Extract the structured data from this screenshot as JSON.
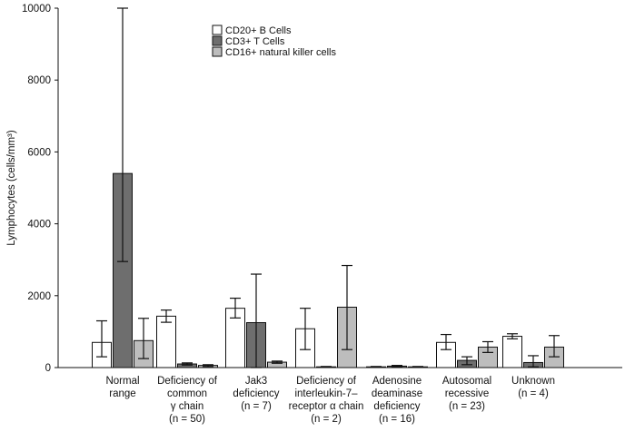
{
  "chart_data": {
    "type": "bar",
    "title": "",
    "xlabel": "",
    "ylabel": "Lymphocytes (cells/mm³)",
    "ylim": [
      0,
      10000
    ],
    "yticks": [
      "0",
      "2000",
      "4000",
      "6000",
      "8000",
      "10000"
    ],
    "ytick_values": [
      0,
      2000,
      4000,
      6000,
      8000,
      10000
    ],
    "grid": false,
    "legend_position": "top-center",
    "categories": [
      {
        "lines": [
          "Normal",
          "range"
        ]
      },
      {
        "lines": [
          "Deficiency of",
          "common",
          "γ chain",
          "(n = 50)"
        ]
      },
      {
        "lines": [
          "Jak3",
          "deficiency",
          "(n = 7)"
        ]
      },
      {
        "lines": [
          "Deficiency of",
          "interleukin-7–",
          "receptor α chain",
          "(n = 2)"
        ]
      },
      {
        "lines": [
          "Adenosine",
          "deaminase",
          "deficiency",
          "(n = 16)"
        ]
      },
      {
        "lines": [
          "Autosomal",
          "recessive",
          "(n = 23)"
        ]
      },
      {
        "lines": [
          "Unknown",
          "(n = 4)"
        ]
      }
    ],
    "series": [
      {
        "name": "CD20+ B Cells",
        "color": "#ffffff",
        "values": [
          700,
          1430,
          1650,
          1080,
          20,
          700,
          870
        ],
        "error_low": [
          300,
          1260,
          1380,
          500,
          10,
          500,
          800
        ],
        "error_high": [
          1300,
          1600,
          1930,
          1650,
          30,
          920,
          940
        ]
      },
      {
        "name": "CD3+ T Cells",
        "color": "#6e6e6e",
        "values": [
          5400,
          100,
          1250,
          20,
          40,
          200,
          140
        ],
        "error_low": [
          2950,
          70,
          0,
          10,
          20,
          80,
          20
        ],
        "error_high": [
          10000,
          130,
          2600,
          30,
          60,
          300,
          330
        ]
      },
      {
        "name": "CD16+ natural killer cells",
        "color": "#bdbdbd",
        "values": [
          750,
          60,
          150,
          1680,
          20,
          570,
          570
        ],
        "error_low": [
          250,
          30,
          120,
          500,
          10,
          420,
          300
        ],
        "error_high": [
          1370,
          80,
          180,
          2840,
          30,
          720,
          890
        ]
      }
    ]
  }
}
